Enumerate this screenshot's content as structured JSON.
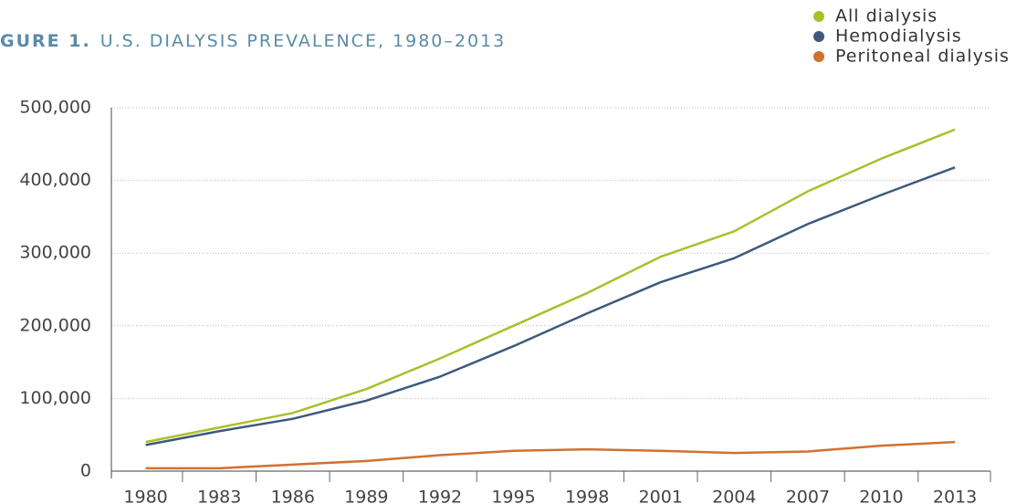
{
  "chart_data": {
    "type": "line",
    "figure_label": "GURE 1.",
    "title": "U.S. DIALYSIS PREVALENCE, 1980–2013",
    "x": [
      1980,
      1983,
      1986,
      1989,
      1992,
      1995,
      1998,
      2001,
      2004,
      2007,
      2010,
      2013
    ],
    "series": [
      {
        "name": "All dialysis",
        "color": "#a8c02c",
        "values": [
          40000,
          60000,
          80000,
          113000,
          155000,
          200000,
          245000,
          295000,
          330000,
          385000,
          430000,
          470000
        ]
      },
      {
        "name": "Hemodialysis",
        "color": "#3d5a7a",
        "values": [
          36000,
          55000,
          72000,
          97000,
          130000,
          172000,
          217000,
          260000,
          293000,
          340000,
          380000,
          418000
        ]
      },
      {
        "name": "Peritoneal dialysis",
        "color": "#d2702f",
        "values": [
          4000,
          4000,
          9000,
          14000,
          22000,
          28000,
          30000,
          28000,
          25000,
          27000,
          35000,
          40000
        ]
      }
    ],
    "xlim": [
      1978.6,
      2014.45
    ],
    "xticks": [
      1980,
      1983,
      1986,
      1989,
      1992,
      1995,
      1998,
      2001,
      2004,
      2007,
      2010,
      2013
    ],
    "ylim": [
      0,
      500000
    ],
    "yticks": [
      {
        "value": 0,
        "label": "0"
      },
      {
        "value": 100000,
        "label": "100,000"
      },
      {
        "value": 200000,
        "label": "200,000"
      },
      {
        "value": 300000,
        "label": "300,000"
      },
      {
        "value": 400000,
        "label": "400,000"
      },
      {
        "value": 500000,
        "label": "500,000"
      }
    ],
    "grid": true,
    "legend": "top-right"
  }
}
